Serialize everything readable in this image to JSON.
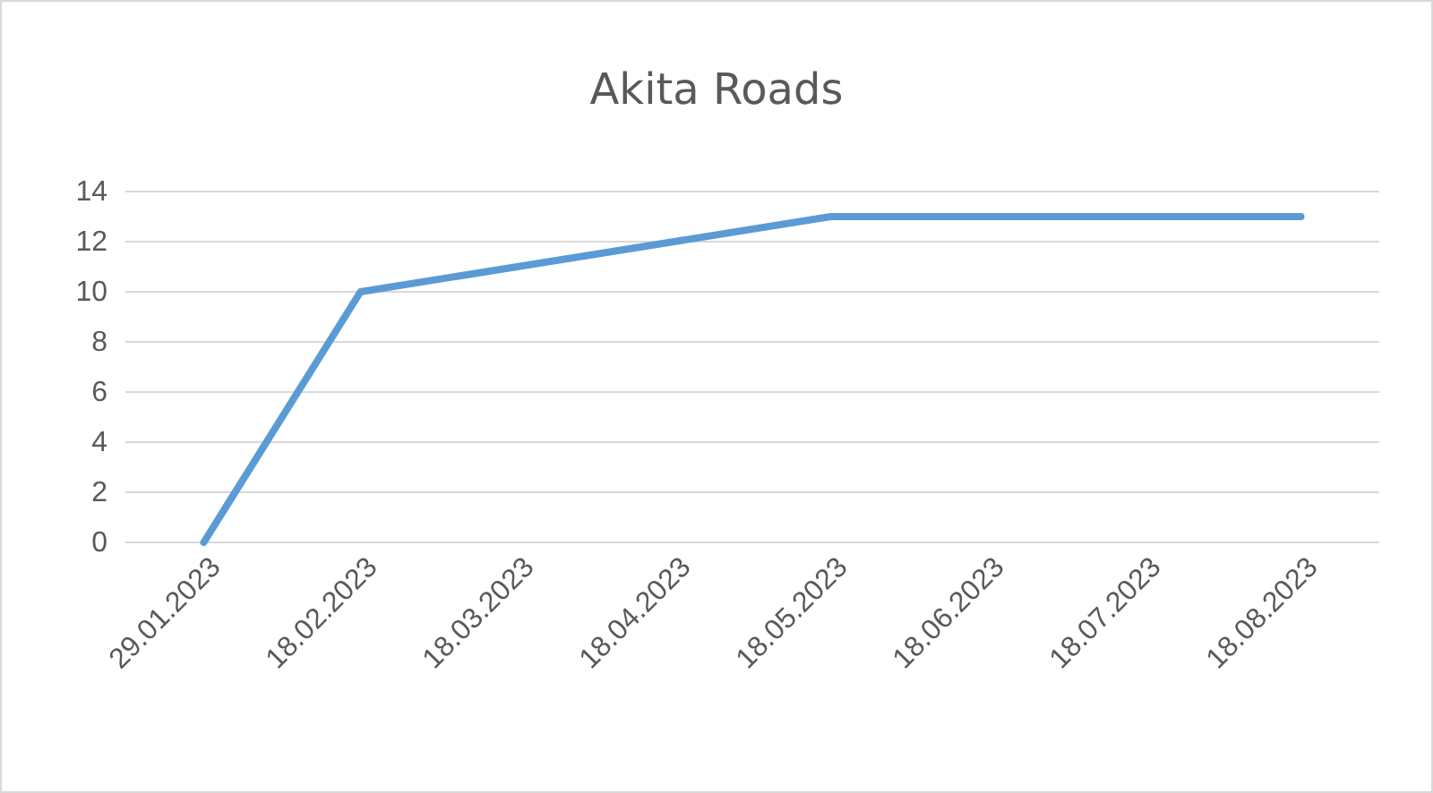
{
  "chart_data": {
    "type": "line",
    "title": "Akita Roads",
    "categories": [
      "29.01.2023",
      "18.02.2023",
      "18.03.2023",
      "18.04.2023",
      "18.05.2023",
      "18.06.2023",
      "18.07.2023",
      "18.08.2023"
    ],
    "series": [
      {
        "color": "#5b9bd5",
        "values": [
          0,
          10,
          11,
          12,
          13,
          13,
          13,
          13
        ]
      }
    ],
    "ylim": [
      0,
      14
    ],
    "yticks": [
      0,
      2,
      4,
      6,
      8,
      10,
      12,
      14
    ],
    "grid": "y",
    "marker": "none",
    "line_style": "solid"
  }
}
